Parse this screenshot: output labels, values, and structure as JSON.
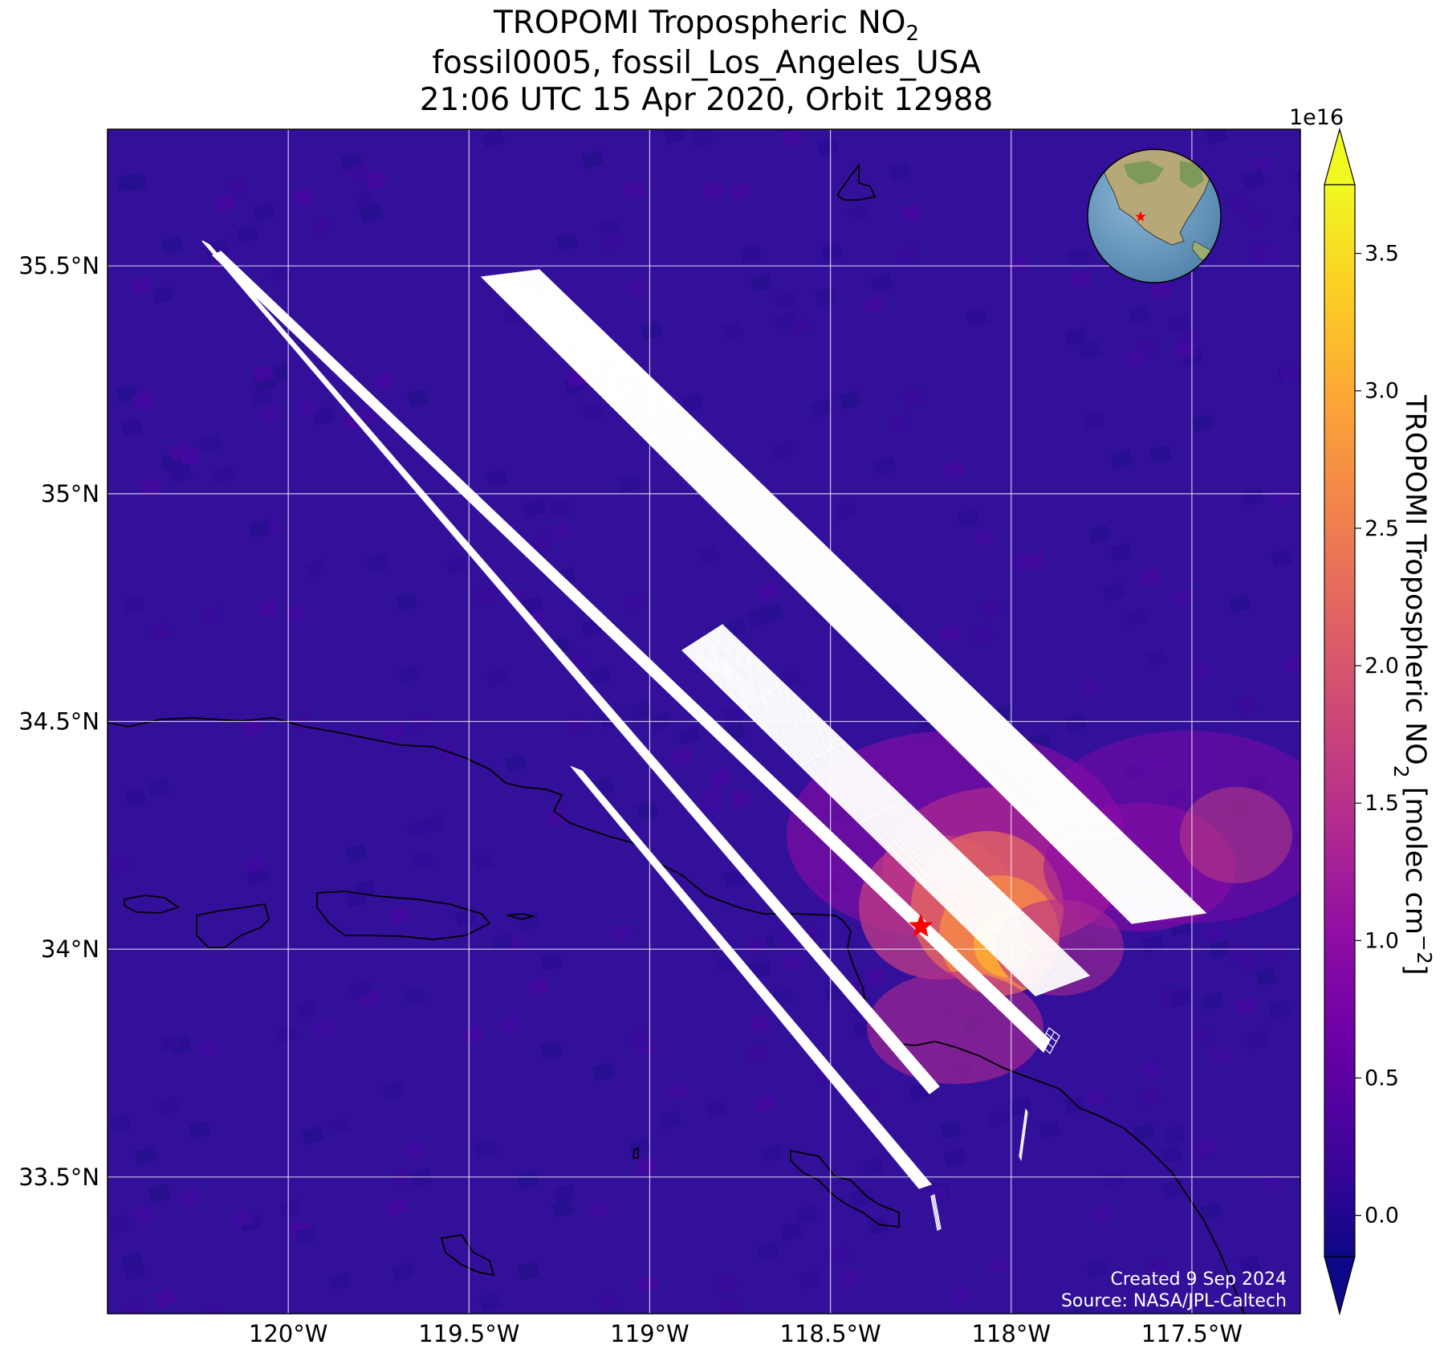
{
  "title": {
    "line1": "TROPOMI Tropospheric NO",
    "line1_sub": "2",
    "line2": "fossil0005, fossil_Los_Angeles_USA",
    "line3": "21:06 UTC 15 Apr 2020, Orbit 12988"
  },
  "map": {
    "lon_labels": [
      "120°W",
      "119.5°W",
      "119°W",
      "118.5°W",
      "118°W",
      "117.5°W"
    ],
    "lat_labels": [
      "35.5°N",
      "35°N",
      "34.5°N",
      "34°N",
      "33.5°N"
    ],
    "lon_values": [
      -120.0,
      -119.5,
      -119.0,
      -118.5,
      -118.0,
      -117.5
    ],
    "lat_values": [
      35.5,
      35.0,
      34.5,
      34.0,
      33.5
    ],
    "lon_range": [
      -120.5,
      -117.2
    ],
    "lat_range": [
      33.2,
      35.8
    ],
    "grid": true,
    "target": {
      "lon": -118.25,
      "lat": 34.05,
      "marker": "red-star"
    },
    "credit_line1": "Created 9 Sep 2024",
    "credit_line2": "Source: NASA/JPL-Caltech",
    "inset": "globe-centered-on-north-america",
    "overlay": "OCO-3 target sounding footprints (white outline grid)"
  },
  "colorbar": {
    "label": "TROPOMI Tropospheric NO",
    "label_sub": "2",
    "label_unit": " [molec cm",
    "label_sup": "−2",
    "label_end": "]",
    "exponent": "1e16",
    "ticks": [
      "0.0",
      "0.5",
      "1.0",
      "1.5",
      "2.0",
      "2.5",
      "3.0",
      "3.5"
    ],
    "tick_values": [
      0.0,
      0.5,
      1.0,
      1.5,
      2.0,
      2.5,
      3.0,
      3.5
    ],
    "range": [
      -0.15,
      3.75
    ],
    "colormap": "plasma",
    "extend": "both"
  },
  "colors": {
    "background_low": "#2f0b97",
    "hotspot_mid": "#cc4778",
    "hotspot_high": "#f89540",
    "hotspot_peak": "#f0f921",
    "footprint_outline": "#ffffff",
    "target_star": "#ff0000"
  }
}
